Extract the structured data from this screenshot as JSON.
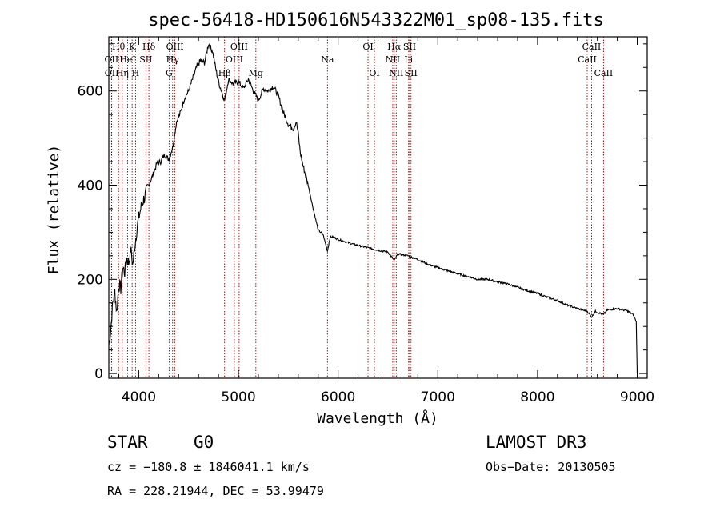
{
  "chart_data": {
    "type": "line",
    "title": "spec-56418-HD150616N543322M01_sp08-135.fits",
    "xlabel": "Wavelength (Å)",
    "ylabel": "Flux (relative)",
    "xlim": [
      3700,
      9100
    ],
    "ylim": [
      -10,
      715
    ],
    "x_ticks": [
      4000,
      5000,
      6000,
      7000,
      8000,
      9000
    ],
    "y_ticks": [
      0,
      200,
      400,
      600
    ],
    "series": [
      {
        "name": "flux",
        "x": [
          3700,
          3720,
          3740,
          3760,
          3780,
          3800,
          3820,
          3840,
          3860,
          3880,
          3900,
          3920,
          3940,
          3960,
          3980,
          4000,
          4030,
          4060,
          4100,
          4140,
          4180,
          4220,
          4260,
          4300,
          4340,
          4380,
          4420,
          4460,
          4500,
          4540,
          4580,
          4620,
          4660,
          4700,
          4740,
          4770,
          4800,
          4830,
          4862,
          4900,
          4950,
          5000,
          5050,
          5100,
          5150,
          5200,
          5250,
          5300,
          5350,
          5400,
          5450,
          5500,
          5550,
          5580,
          5600,
          5620,
          5650,
          5700,
          5750,
          5800,
          5850,
          5893,
          5920,
          5950,
          6000,
          6100,
          6200,
          6300,
          6400,
          6500,
          6563,
          6600,
          6700,
          6800,
          6900,
          7000,
          7100,
          7200,
          7300,
          7400,
          7500,
          7600,
          7700,
          7800,
          7900,
          8000,
          8100,
          8200,
          8300,
          8400,
          8500,
          8542,
          8580,
          8662,
          8700,
          8800,
          8900,
          8960,
          8990,
          9000
        ],
        "y": [
          60,
          95,
          150,
          175,
          130,
          190,
          180,
          225,
          215,
          245,
          235,
          265,
          230,
          270,
          305,
          330,
          360,
          375,
          400,
          420,
          445,
          450,
          465,
          455,
          480,
          535,
          555,
          585,
          600,
          625,
          650,
          665,
          660,
          700,
          685,
          650,
          620,
          600,
          580,
          625,
          615,
          620,
          605,
          625,
          600,
          580,
          605,
          600,
          610,
          590,
          555,
          530,
          520,
          535,
          510,
          470,
          440,
          400,
          350,
          305,
          295,
          260,
          290,
          290,
          285,
          278,
          272,
          267,
          262,
          258,
          240,
          254,
          250,
          242,
          232,
          225,
          218,
          212,
          206,
          200,
          200,
          195,
          190,
          183,
          176,
          170,
          162,
          155,
          145,
          138,
          132,
          120,
          132,
          125,
          135,
          138,
          133,
          125,
          110,
          0
        ]
      }
    ],
    "spectral_lines": [
      {
        "label": "OII",
        "x": 3727,
        "row": 2
      },
      {
        "label": "OII",
        "x": 3729,
        "row": 3
      },
      {
        "label": "Hθ",
        "x": 3798,
        "row": 1
      },
      {
        "label": "Hη",
        "x": 3835,
        "row": 3
      },
      {
        "label": "K",
        "x": 3934,
        "row": 1
      },
      {
        "label": "HeI",
        "x": 3889,
        "row": 2
      },
      {
        "label": "H",
        "x": 3968,
        "row": 3
      },
      {
        "label": "SII",
        "x": 4072,
        "row": 2
      },
      {
        "label": "Hδ",
        "x": 4102,
        "row": 1
      },
      {
        "label": "OIII",
        "x": 4363,
        "row": 1
      },
      {
        "label": "Hγ",
        "x": 4340,
        "row": 2
      },
      {
        "label": "G",
        "x": 4305,
        "row": 3
      },
      {
        "label": "Hβ",
        "x": 4861,
        "row": 3
      },
      {
        "label": "OIII",
        "x": 4959,
        "row": 2
      },
      {
        "label": "OIII",
        "x": 5007,
        "row": 1
      },
      {
        "label": "Mg",
        "x": 5175,
        "row": 3
      },
      {
        "label": "Na",
        "x": 5893,
        "row": 2
      },
      {
        "label": "OI",
        "x": 6300,
        "row": 1
      },
      {
        "label": "OI",
        "x": 6364,
        "row": 3
      },
      {
        "label": "Hα",
        "x": 6563,
        "row": 1
      },
      {
        "label": "NII",
        "x": 6548,
        "row": 2
      },
      {
        "label": "NII",
        "x": 6583,
        "row": 3
      },
      {
        "label": "SII",
        "x": 6717,
        "row": 1
      },
      {
        "label": "Li",
        "x": 6707,
        "row": 2
      },
      {
        "label": "SII",
        "x": 6731,
        "row": 3
      },
      {
        "label": "CaII",
        "x": 8498,
        "row": 2
      },
      {
        "label": "CaII",
        "x": 8542,
        "row": 1
      },
      {
        "label": "CaII",
        "x": 8662,
        "row": 3
      }
    ]
  },
  "info": {
    "object_type": "STAR",
    "subclass": "G0",
    "survey": "LAMOST DR3",
    "cz": "cz = −180.8 ± 1846041.1 km/s",
    "obs_date": "Obs−Date: 20130505",
    "coords": "RA = 228.21944, DEC =  53.99479"
  },
  "colors": {
    "line_marker": "#8b0000",
    "spectrum": "#000000",
    "axes": "#000000"
  }
}
